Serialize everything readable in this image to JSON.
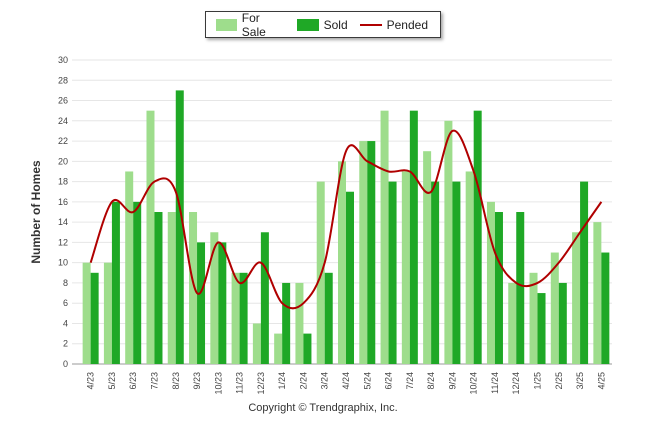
{
  "legend": {
    "for_sale": "For Sale",
    "sold": "Sold",
    "pended": "Pended"
  },
  "colors": {
    "for_sale": "#9edd8c",
    "sold": "#1fa826",
    "pended": "#b00000",
    "grid": "#e6e6e6"
  },
  "footer": "Copyright © Trendgraphix, Inc.",
  "chart_data": {
    "type": "bar",
    "title": "",
    "xlabel": "",
    "ylabel": "Number of Homes",
    "ylim": [
      0,
      30
    ],
    "yticks": [
      0,
      2,
      4,
      6,
      8,
      10,
      12,
      14,
      16,
      18,
      20,
      22,
      24,
      26,
      28,
      30
    ],
    "grid": true,
    "legend_position": "top-center",
    "categories": [
      "4/23",
      "5/23",
      "6/23",
      "7/23",
      "8/23",
      "9/23",
      "10/23",
      "11/23",
      "12/23",
      "1/24",
      "2/24",
      "3/24",
      "4/24",
      "5/24",
      "6/24",
      "7/24",
      "8/24",
      "9/24",
      "10/24",
      "11/24",
      "12/24",
      "1/25",
      "2/25",
      "3/25",
      "4/25"
    ],
    "series": [
      {
        "name": "For Sale",
        "type": "bar",
        "values": [
          10,
          10,
          19,
          25,
          15,
          15,
          13,
          9,
          4,
          3,
          8,
          18,
          20,
          22,
          25,
          19,
          21,
          24,
          19,
          16,
          8,
          9,
          11,
          13,
          14
        ]
      },
      {
        "name": "Sold",
        "type": "bar",
        "values": [
          9,
          16,
          16,
          15,
          27,
          12,
          12,
          9,
          13,
          8,
          3,
          9,
          17,
          22,
          18,
          25,
          18,
          18,
          25,
          15,
          15,
          7,
          8,
          18,
          11
        ]
      },
      {
        "name": "Pended",
        "type": "line",
        "values": [
          10,
          16,
          15,
          18,
          17,
          7,
          12,
          8,
          10,
          6,
          6,
          10,
          21,
          20,
          19,
          19,
          17,
          23,
          19,
          11,
          8,
          8,
          10,
          13,
          16
        ]
      }
    ]
  }
}
